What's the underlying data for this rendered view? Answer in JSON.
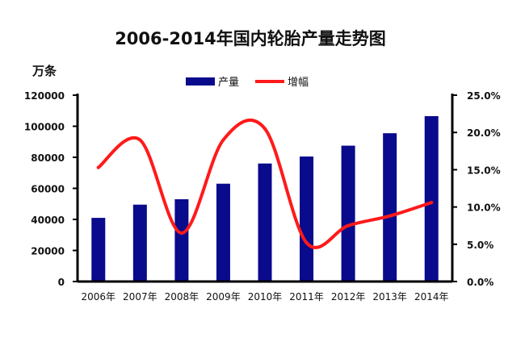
{
  "chart_data": {
    "type": "bar",
    "title": "2006-2014年国内轮胎产量走势图",
    "y_unit_label": "万条",
    "categories": [
      "2006年",
      "2007年",
      "2008年",
      "2009年",
      "2010年",
      "2011年",
      "2012年",
      "2013年",
      "2014年"
    ],
    "series": [
      {
        "name": "产量",
        "type": "bar",
        "axis": "left",
        "color": "#0a0a8c",
        "values": [
          41000,
          49500,
          53000,
          63000,
          76000,
          80500,
          87500,
          95500,
          106500
        ]
      },
      {
        "name": "增幅",
        "type": "line",
        "axis": "right",
        "color": "#ff1a1a",
        "values": [
          15.3,
          19.0,
          6.5,
          19.0,
          20.5,
          5.2,
          7.5,
          8.8,
          10.6
        ]
      }
    ],
    "y_left": {
      "ylim": [
        0,
        120000
      ],
      "ticks": [
        "0",
        "20000",
        "40000",
        "60000",
        "80000",
        "100000",
        "120000"
      ]
    },
    "y_right": {
      "ylim": [
        0,
        25
      ],
      "ticks": [
        "0.0%",
        "5.0%",
        "10.0%",
        "15.0%",
        "20.0%",
        "25.0%"
      ]
    },
    "grid": false,
    "legend_position": "top-center"
  }
}
